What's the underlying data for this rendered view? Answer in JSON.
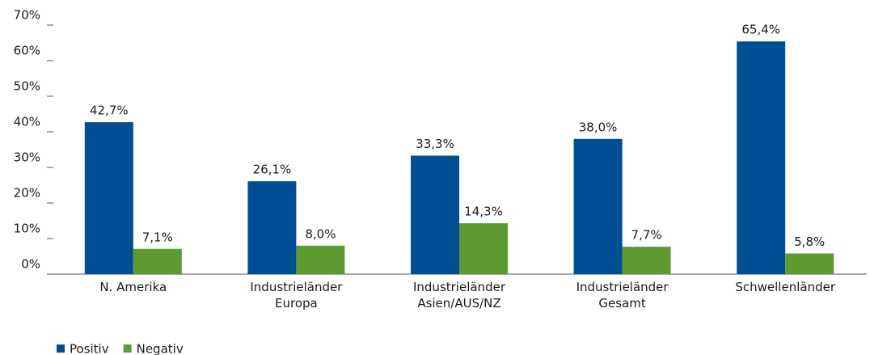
{
  "chart_data": {
    "type": "bar",
    "categories": [
      "N. Amerika",
      "Industrieländer\nEuropa",
      "Industrieländer\nAsien/AUS/NZ",
      "Industrieländer\nGesamt",
      "Schwellenländer"
    ],
    "series": [
      {
        "name": "Positiv",
        "color": "#004f94",
        "values": [
          42.7,
          26.1,
          33.3,
          38.0,
          65.4
        ],
        "value_labels": [
          "42,7%",
          "26,1%",
          "33,3%",
          "38,0%",
          "65,4%"
        ]
      },
      {
        "name": "Negativ",
        "color": "#5e9a32",
        "values": [
          7.1,
          8.0,
          14.3,
          7.7,
          5.8
        ],
        "value_labels": [
          "7,1%",
          "8,0%",
          "14,3%",
          "7,7%",
          "5,8%"
        ]
      }
    ],
    "ylim": [
      0,
      70
    ],
    "yticks": [
      {
        "value": 0,
        "label": "0%"
      },
      {
        "value": 10,
        "label": "10%"
      },
      {
        "value": 20,
        "label": "20%"
      },
      {
        "value": 30,
        "label": "30%"
      },
      {
        "value": 40,
        "label": "40%"
      },
      {
        "value": 50,
        "label": "50%"
      },
      {
        "value": 60,
        "label": "60%"
      },
      {
        "value": 70,
        "label": "70%"
      }
    ],
    "legend": "bottom-left"
  }
}
